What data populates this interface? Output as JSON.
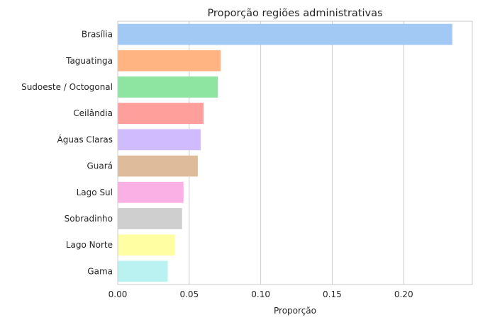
{
  "chart_data": {
    "type": "bar",
    "orientation": "horizontal",
    "title": "Proporção regiões administrativas",
    "xlabel": "Proporção",
    "ylabel": "",
    "xlim": [
      0,
      0.248
    ],
    "xticks": [
      0.0,
      0.05,
      0.1,
      0.15,
      0.2
    ],
    "xtick_labels": [
      "0.00",
      "0.05",
      "0.10",
      "0.15",
      "0.20"
    ],
    "grid": "vertical",
    "categories": [
      "Brasília",
      "Taguatinga",
      "Sudoeste / Octogonal",
      "Ceilândia",
      "Águas Claras",
      "Guará",
      "Lago Sul",
      "Sobradinho",
      "Lago Norte",
      "Gama"
    ],
    "values": [
      0.234,
      0.072,
      0.07,
      0.06,
      0.058,
      0.056,
      0.046,
      0.045,
      0.04,
      0.035
    ],
    "colors": [
      "#a1c9f4",
      "#ffb482",
      "#8de5a1",
      "#ff9f9b",
      "#d0bbff",
      "#debb9b",
      "#fab0e4",
      "#cfcfcf",
      "#fffea3",
      "#b9f2f0"
    ]
  }
}
